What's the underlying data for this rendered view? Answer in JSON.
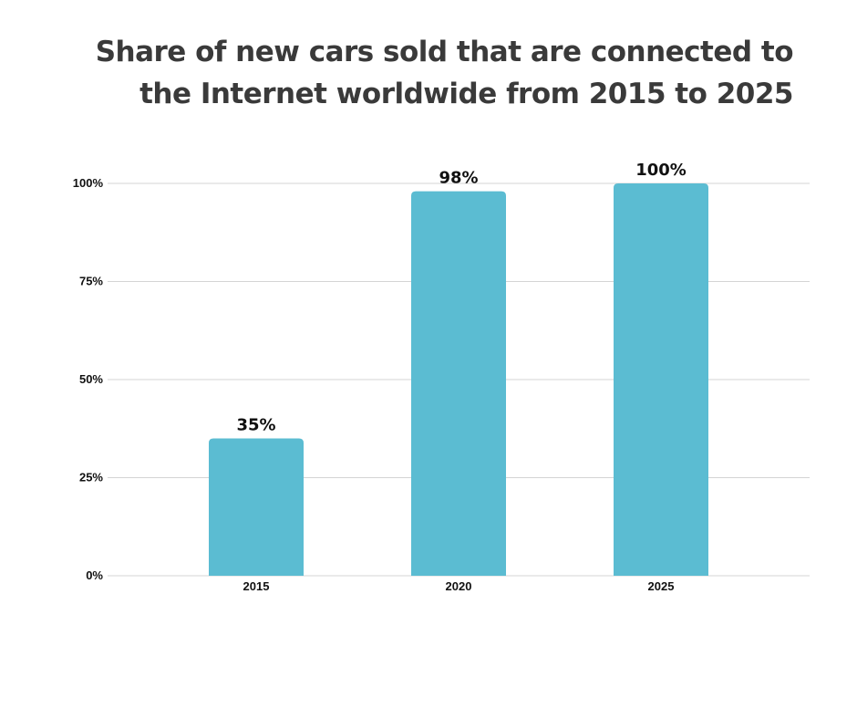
{
  "chart_data": {
    "type": "bar",
    "title": "Share of new cars sold that are connected to the Internet worldwide from 2015 to 2025",
    "categories": [
      "2015",
      "2020",
      "2025"
    ],
    "values": [
      35,
      98,
      100
    ],
    "data_labels": [
      "35%",
      "98%",
      "100%"
    ],
    "y_ticks": [
      0,
      25,
      50,
      75,
      100
    ],
    "y_tick_labels": [
      "0%",
      "25%",
      "50%",
      "75%",
      "100%"
    ],
    "ylim": [
      0,
      100
    ],
    "xlabel": "",
    "ylabel": "",
    "grid": true,
    "bar_color": "#5bbcd2",
    "grid_color": "#d4d4d4"
  }
}
